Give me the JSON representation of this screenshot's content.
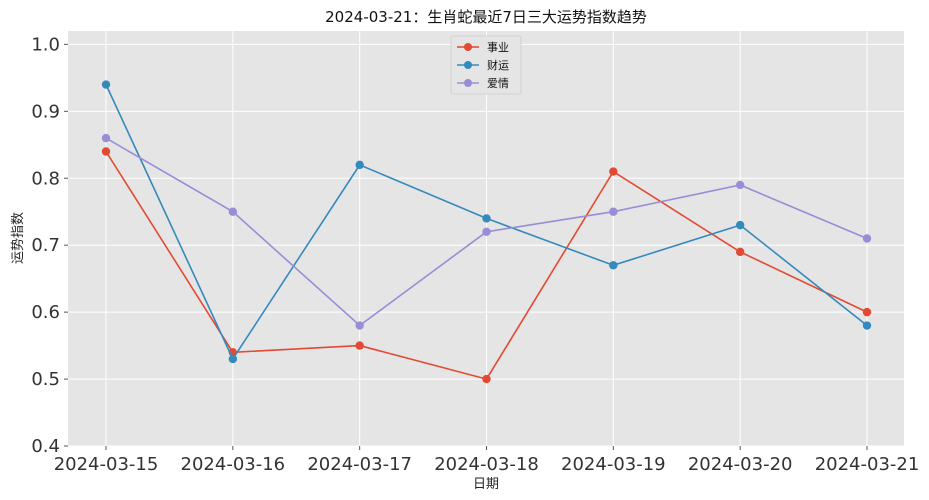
{
  "chart_data": {
    "type": "line",
    "title": "2024-03-21：生肖蛇最近7日三大运势指数趋势",
    "xlabel": "日期",
    "ylabel": "运势指数",
    "categories": [
      "2024-03-15",
      "2024-03-16",
      "2024-03-17",
      "2024-03-18",
      "2024-03-19",
      "2024-03-20",
      "2024-03-21"
    ],
    "ylim": [
      0.4,
      1.02
    ],
    "yticks": [
      "0.4",
      "0.5",
      "0.6",
      "0.7",
      "0.8",
      "0.9",
      "1.0"
    ],
    "grid": true,
    "legend_position": "top-center",
    "series": [
      {
        "name": "事业",
        "color": "#E24A33",
        "values": [
          0.84,
          0.54,
          0.55,
          0.5,
          0.81,
          0.69,
          0.6
        ]
      },
      {
        "name": "财运",
        "color": "#348ABD",
        "values": [
          0.94,
          0.53,
          0.82,
          0.74,
          0.67,
          0.73,
          0.58
        ]
      },
      {
        "name": "爱情",
        "color": "#988ED5",
        "values": [
          0.86,
          0.75,
          0.58,
          0.72,
          0.75,
          0.79,
          0.71
        ]
      }
    ]
  }
}
